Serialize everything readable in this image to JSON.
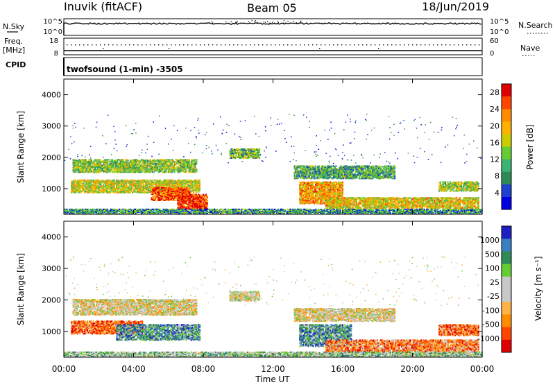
{
  "header": {
    "station": "Inuvik (fitACF)",
    "beam": "Beam 05",
    "date": "18/Jun/2019"
  },
  "top_panels": {
    "nsky_label": "N.Sky",
    "nsky_ticks": [
      "10^5",
      "10^0"
    ],
    "nsearch_label": "N.Search",
    "nsearch_ticks": [
      "10^5",
      "10^0"
    ],
    "freq_label": "Freq.",
    "freq_unit": "[MHz]",
    "freq_ticks": [
      "18",
      "8"
    ],
    "nave_label": "Nave",
    "nave_ticks": [
      "60",
      "0"
    ],
    "cpid_label": "CPID",
    "cpid_text": "twofsound (1-min) -3505"
  },
  "colors": {
    "power": [
      "#0000e0",
      "#2040d0",
      "#2e8b57",
      "#3cb371",
      "#66cc33",
      "#cccc00",
      "#ffb000",
      "#ff8c00",
      "#ff4500",
      "#e00000"
    ],
    "velocity": [
      "#e00000",
      "#ff4500",
      "#ff8c00",
      "#ffb347",
      "#c8c8c8",
      "#c8c8c8",
      "#66cc33",
      "#2e8b57",
      "#3a7fc0",
      "#2020c0"
    ]
  },
  "chart_data": [
    {
      "type": "heatmap",
      "name": "power",
      "xlabel": "",
      "ylabel": "Slant Range [km]",
      "xlim": [
        0,
        24
      ],
      "ylim": [
        180,
        4500
      ],
      "y_ticks": [
        "1000",
        "2000",
        "3000",
        "4000"
      ],
      "y_tick_values": [
        1000,
        2000,
        3000,
        4000
      ],
      "colorbar_label": "Power [dB]",
      "colorbar_ticks": [
        "4",
        "8",
        "12",
        "16",
        "20",
        "24",
        "28"
      ],
      "colorbar_tick_values": [
        4,
        8,
        12,
        16,
        20,
        24,
        28
      ],
      "colorbar_range": [
        0,
        30
      ],
      "bands": [
        {
          "t0": 0.4,
          "t1": 7.8,
          "r0": 850,
          "r1": 1250,
          "level": 0.55
        },
        {
          "t0": 0.5,
          "t1": 7.6,
          "r0": 1500,
          "r1": 1900,
          "level": 0.45
        },
        {
          "t0": 5.0,
          "t1": 7.2,
          "r0": 600,
          "r1": 1000,
          "level": 0.85
        },
        {
          "t0": 6.5,
          "t1": 8.2,
          "r0": 300,
          "r1": 800,
          "level": 0.9
        },
        {
          "t0": 9.5,
          "t1": 11.2,
          "r0": 1950,
          "r1": 2250,
          "level": 0.4
        },
        {
          "t0": 13.2,
          "t1": 19.0,
          "r0": 1300,
          "r1": 1700,
          "level": 0.35
        },
        {
          "t0": 13.5,
          "t1": 16.0,
          "r0": 500,
          "r1": 1200,
          "level": 0.7
        },
        {
          "t0": 15.0,
          "t1": 23.8,
          "r0": 350,
          "r1": 700,
          "level": 0.6
        },
        {
          "t0": 21.5,
          "t1": 23.8,
          "r0": 900,
          "r1": 1200,
          "level": 0.5
        },
        {
          "t0": 0.0,
          "t1": 24.0,
          "r0": 180,
          "r1": 320,
          "level": 0.3
        }
      ]
    },
    {
      "type": "heatmap",
      "name": "velocity",
      "xlabel": "Time UT",
      "ylabel": "Slant Range [km]",
      "xlim": [
        0,
        24
      ],
      "ylim": [
        180,
        4500
      ],
      "x_ticks": [
        "00:00",
        "04:00",
        "08:00",
        "12:00",
        "16:00",
        "20:00",
        "00:00"
      ],
      "x_tick_values": [
        0,
        4,
        8,
        12,
        16,
        20,
        24
      ],
      "y_ticks": [
        "1000",
        "2000",
        "3000",
        "4000"
      ],
      "y_tick_values": [
        1000,
        2000,
        3000,
        4000
      ],
      "colorbar_label": "Velocity [m s⁻¹]",
      "colorbar_ticks": [
        "1000",
        "500",
        "100",
        "25",
        "-25",
        "-100",
        "-500",
        "-1000"
      ],
      "bands": [
        {
          "t0": 0.4,
          "t1": 4.5,
          "r0": 900,
          "r1": 1300,
          "level": 0.2
        },
        {
          "t0": 3.0,
          "t1": 7.8,
          "r0": 700,
          "r1": 1200,
          "level": 0.75
        },
        {
          "t0": 0.5,
          "t1": 7.6,
          "r0": 1500,
          "r1": 2000,
          "level": 0.45
        },
        {
          "t0": 9.5,
          "t1": 11.2,
          "r0": 1950,
          "r1": 2250,
          "level": 0.5
        },
        {
          "t0": 13.2,
          "t1": 19.0,
          "r0": 1300,
          "r1": 1700,
          "level": 0.45
        },
        {
          "t0": 13.5,
          "t1": 16.5,
          "r0": 500,
          "r1": 1200,
          "level": 0.75
        },
        {
          "t0": 15.0,
          "t1": 23.8,
          "r0": 300,
          "r1": 700,
          "level": 0.25
        },
        {
          "t0": 21.5,
          "t1": 23.8,
          "r0": 850,
          "r1": 1200,
          "level": 0.2
        },
        {
          "t0": 0.0,
          "t1": 24.0,
          "r0": 180,
          "r1": 320,
          "level": 0.6
        }
      ]
    }
  ]
}
